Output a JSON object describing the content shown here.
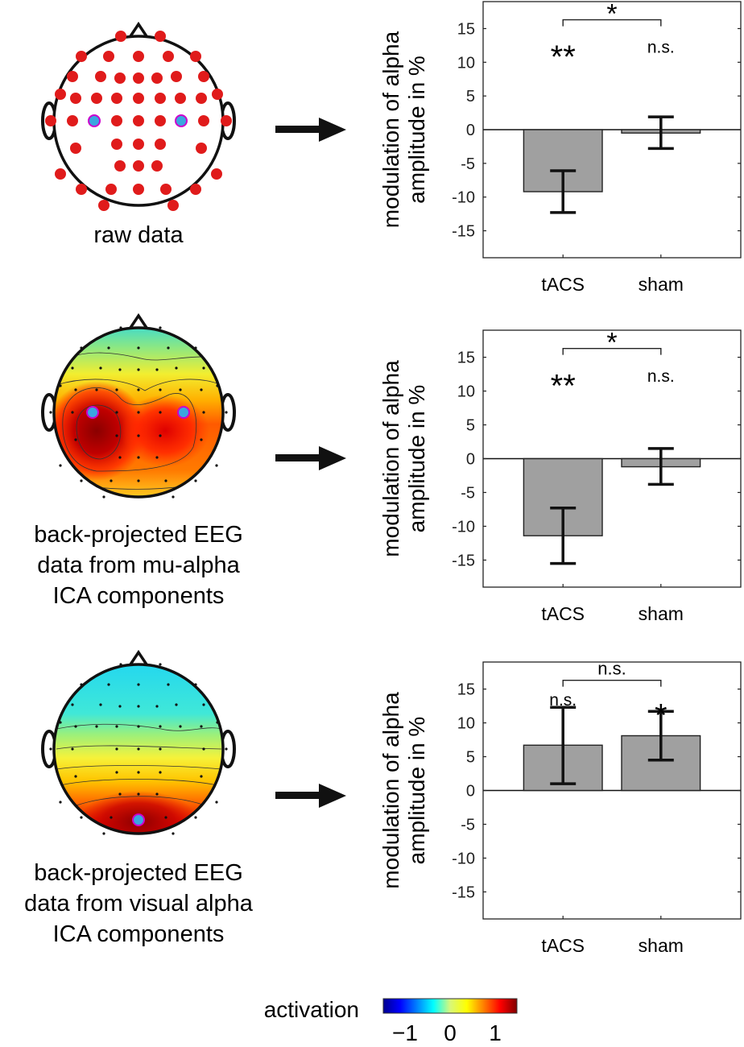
{
  "head_labels": {
    "raw": "raw data",
    "mu": [
      "back-projected EEG",
      "data from mu-alpha",
      "ICA components"
    ],
    "visual": [
      "back-projected EEG",
      "data from visual alpha",
      "ICA components"
    ]
  },
  "colorbar": {
    "label": "activation",
    "ticks": [
      "−1",
      "0",
      "1"
    ],
    "range": [
      -1,
      1
    ]
  },
  "chart_data": [
    {
      "type": "bar",
      "panel": "raw data",
      "categories": [
        "tACS",
        "sham"
      ],
      "values": [
        -9.2,
        -0.5
      ],
      "errors_lower": [
        -12.3,
        -2.8
      ],
      "errors_upper": [
        -6.1,
        1.9
      ],
      "ylabel": [
        "modulation of alpha",
        "amplitude in %"
      ],
      "ylim": [
        -19,
        19
      ],
      "yticks": [
        15,
        10,
        5,
        0,
        -5,
        -10,
        -15
      ],
      "bar_annotations": [
        "**",
        "n.s."
      ],
      "comparison_label": "*"
    },
    {
      "type": "bar",
      "panel": "mu-alpha ICA components",
      "categories": [
        "tACS",
        "sham"
      ],
      "values": [
        -11.4,
        -1.2
      ],
      "errors_lower": [
        -15.5,
        -3.8
      ],
      "errors_upper": [
        -7.3,
        1.5
      ],
      "ylabel": [
        "modulation of alpha",
        "amplitude in %"
      ],
      "ylim": [
        -19,
        19
      ],
      "yticks": [
        15,
        10,
        5,
        0,
        -5,
        -10,
        -15
      ],
      "bar_annotations": [
        "**",
        "n.s."
      ],
      "comparison_label": "*"
    },
    {
      "type": "bar",
      "panel": "visual alpha ICA components",
      "categories": [
        "tACS",
        "sham"
      ],
      "values": [
        6.7,
        8.1
      ],
      "errors_lower": [
        1.0,
        4.5
      ],
      "errors_upper": [
        12.3,
        11.7
      ],
      "ylabel": [
        "modulation of alpha",
        "amplitude in %"
      ],
      "ylim": [
        -19,
        19
      ],
      "yticks": [
        15,
        10,
        5,
        0,
        -5,
        -10,
        -15
      ],
      "bar_annotations": [
        "n.s.",
        "*"
      ],
      "comparison_label": "n.s."
    }
  ]
}
